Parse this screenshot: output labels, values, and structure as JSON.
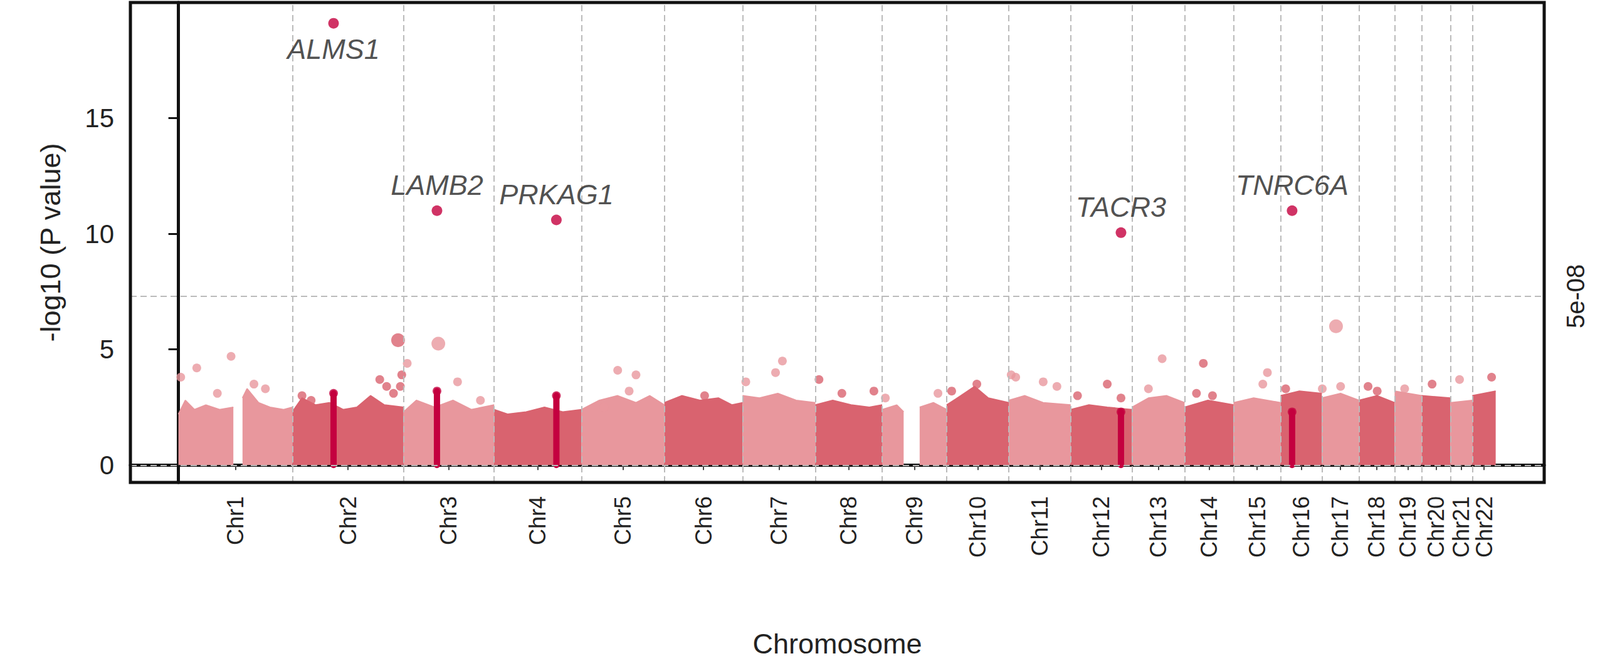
{
  "chart_data": {
    "type": "manhattan",
    "x_label": "Chromosome",
    "y_label": "-log10 (P value)",
    "xlim": [
      -105,
      2985
    ],
    "ylim": [
      -0.75,
      20
    ],
    "yticks": [
      0,
      5,
      10,
      15
    ],
    "xticks": [
      {
        "value": 124.5,
        "label": "Chr1"
      },
      {
        "value": 370.5,
        "label": "Chr2"
      },
      {
        "value": 591,
        "label": "Chr3"
      },
      {
        "value": 785.5,
        "label": "Chr4"
      },
      {
        "value": 971.5,
        "label": "Chr5"
      },
      {
        "value": 1147.5,
        "label": "Chr6"
      },
      {
        "value": 1312.5,
        "label": "Chr7"
      },
      {
        "value": 1465,
        "label": "Chr8"
      },
      {
        "value": 1608.5,
        "label": "Chr9"
      },
      {
        "value": 1747,
        "label": "Chr10"
      },
      {
        "value": 1882.5,
        "label": "Chr11"
      },
      {
        "value": 2017,
        "label": "Chr12"
      },
      {
        "value": 2141.5,
        "label": "Chr13"
      },
      {
        "value": 2252.5,
        "label": "Chr14"
      },
      {
        "value": 2357.5,
        "label": "Chr15"
      },
      {
        "value": 2454,
        "label": "Chr16"
      },
      {
        "value": 2539.5,
        "label": "Chr17"
      },
      {
        "value": 2619,
        "label": "Chr18"
      },
      {
        "value": 2687.5,
        "label": "Chr19"
      },
      {
        "value": 2748.5,
        "label": "Chr20"
      },
      {
        "value": 2804,
        "label": "Chr21"
      },
      {
        "value": 2853.5,
        "label": "Chr22"
      }
    ],
    "boundaries": [
      249,
      492,
      690,
      881,
      1062,
      1233,
      1392,
      1538,
      1679,
      1815,
      1950,
      2084,
      2199,
      2306,
      2409,
      2499,
      2580,
      2658,
      2717,
      2780,
      2828
    ],
    "hlines": [
      {
        "value": 0
      },
      {
        "value": 7.30103,
        "label": "5e-08"
      }
    ],
    "series": [
      {
        "color": "#e8979d",
        "envelope": [
          [
            0,
            2.2
          ],
          [
            15,
            2.8
          ],
          [
            35,
            2.4
          ],
          [
            60,
            2.6
          ],
          [
            90,
            2.4
          ],
          [
            120,
            2.5
          ],
          [
            124,
            null
          ],
          [
            140,
            2.9
          ],
          [
            150,
            3.3
          ],
          [
            175,
            2.7
          ],
          [
            200,
            2.5
          ],
          [
            230,
            2.4
          ],
          [
            249,
            2.5
          ]
        ],
        "points": [
          [
            5,
            3.8
          ],
          [
            40,
            4.2
          ],
          [
            115,
            4.7
          ],
          [
            85,
            3.1
          ],
          [
            165,
            3.5
          ],
          [
            190,
            3.3
          ]
        ]
      },
      {
        "color": "#d9636f",
        "envelope": [
          [
            249,
            2.3
          ],
          [
            270,
            2.9
          ],
          [
            300,
            2.6
          ],
          [
            330,
            2.7
          ],
          [
            360,
            2.4
          ],
          [
            390,
            2.5
          ],
          [
            420,
            3.0
          ],
          [
            450,
            2.6
          ],
          [
            492,
            2.5
          ]
        ],
        "points": [
          [
            270,
            3.0
          ],
          [
            290,
            2.8
          ],
          [
            440,
            3.7
          ],
          [
            455,
            3.4
          ],
          [
            470,
            3.1
          ],
          [
            480,
            5.4
          ],
          [
            485,
            3.4
          ],
          [
            488,
            3.9
          ]
        ]
      },
      {
        "color": "#e8979d",
        "envelope": [
          [
            492,
            2.3
          ],
          [
            520,
            2.8
          ],
          [
            560,
            2.5
          ],
          [
            600,
            2.8
          ],
          [
            640,
            2.4
          ],
          [
            690,
            2.6
          ]
        ],
        "points": [
          [
            500,
            4.4
          ],
          [
            568,
            5.25
          ],
          [
            610,
            3.6
          ],
          [
            660,
            2.8
          ]
        ]
      },
      {
        "color": "#d9636f",
        "envelope": [
          [
            690,
            2.4
          ],
          [
            720,
            2.2
          ],
          [
            760,
            2.3
          ],
          [
            800,
            2.5
          ],
          [
            840,
            2.3
          ],
          [
            881,
            2.4
          ]
        ],
        "points": []
      },
      {
        "color": "#e8979d",
        "envelope": [
          [
            881,
            2.4
          ],
          [
            920,
            2.8
          ],
          [
            960,
            3.0
          ],
          [
            1000,
            2.7
          ],
          [
            1030,
            3.0
          ],
          [
            1062,
            2.6
          ]
        ],
        "points": [
          [
            960,
            4.1
          ],
          [
            1000,
            3.9
          ],
          [
            985,
            3.2
          ],
          [
            930,
            2.5
          ]
        ]
      },
      {
        "color": "#d9636f",
        "envelope": [
          [
            1062,
            2.7
          ],
          [
            1100,
            3.0
          ],
          [
            1140,
            2.8
          ],
          [
            1180,
            2.9
          ],
          [
            1210,
            2.6
          ],
          [
            1233,
            2.7
          ]
        ],
        "points": [
          [
            1150,
            3.0
          ]
        ]
      },
      {
        "color": "#e8979d",
        "envelope": [
          [
            1233,
            3.0
          ],
          [
            1270,
            2.9
          ],
          [
            1310,
            3.1
          ],
          [
            1350,
            2.8
          ],
          [
            1392,
            2.7
          ]
        ],
        "points": [
          [
            1320,
            4.5
          ],
          [
            1305,
            4.0
          ],
          [
            1240,
            3.6
          ]
        ]
      },
      {
        "color": "#d9636f",
        "envelope": [
          [
            1392,
            2.6
          ],
          [
            1430,
            2.8
          ],
          [
            1470,
            2.6
          ],
          [
            1510,
            2.5
          ],
          [
            1538,
            2.6
          ]
        ],
        "points": [
          [
            1400,
            3.7
          ],
          [
            1450,
            3.1
          ],
          [
            1520,
            3.2
          ]
        ]
      },
      {
        "color": "#e8979d",
        "envelope": [
          [
            1538,
            2.4
          ],
          [
            1570,
            2.6
          ],
          [
            1585,
            2.3
          ],
          [
            1590,
            null
          ],
          [
            1620,
            2.5
          ],
          [
            1650,
            2.7
          ],
          [
            1679,
            2.4
          ]
        ],
        "points": [
          [
            1545,
            2.9
          ],
          [
            1660,
            3.1
          ]
        ]
      },
      {
        "color": "#d9636f",
        "envelope": [
          [
            1679,
            2.6
          ],
          [
            1710,
            3.0
          ],
          [
            1740,
            3.4
          ],
          [
            1770,
            2.9
          ],
          [
            1815,
            2.7
          ]
        ],
        "points": [
          [
            1690,
            3.2
          ],
          [
            1745,
            3.5
          ]
        ]
      },
      {
        "color": "#e8979d",
        "envelope": [
          [
            1815,
            2.8
          ],
          [
            1850,
            3.0
          ],
          [
            1890,
            2.7
          ],
          [
            1950,
            2.6
          ]
        ],
        "points": [
          [
            1820,
            3.9
          ],
          [
            1830,
            3.8
          ],
          [
            1890,
            3.6
          ],
          [
            1920,
            3.4
          ]
        ]
      },
      {
        "color": "#d9636f",
        "envelope": [
          [
            1950,
            2.4
          ],
          [
            1990,
            2.6
          ],
          [
            2030,
            2.5
          ],
          [
            2084,
            2.4
          ]
        ],
        "points": [
          [
            2030,
            3.5
          ],
          [
            1965,
            3.0
          ],
          [
            2060,
            2.9
          ]
        ]
      },
      {
        "color": "#e8979d",
        "envelope": [
          [
            2084,
            2.5
          ],
          [
            2120,
            2.9
          ],
          [
            2160,
            3.0
          ],
          [
            2199,
            2.7
          ]
        ],
        "points": [
          [
            2150,
            4.6
          ],
          [
            2120,
            3.3
          ]
        ]
      },
      {
        "color": "#d9636f",
        "envelope": [
          [
            2199,
            2.5
          ],
          [
            2250,
            2.8
          ],
          [
            2306,
            2.6
          ]
        ],
        "points": [
          [
            2240,
            4.4
          ],
          [
            2225,
            3.1
          ],
          [
            2260,
            3.0
          ]
        ]
      },
      {
        "color": "#e8979d",
        "envelope": [
          [
            2306,
            2.7
          ],
          [
            2350,
            2.9
          ],
          [
            2409,
            2.7
          ]
        ],
        "points": [
          [
            2380,
            4.0
          ],
          [
            2370,
            3.5
          ]
        ]
      },
      {
        "color": "#d9636f",
        "envelope": [
          [
            2409,
            3.0
          ],
          [
            2450,
            3.2
          ],
          [
            2499,
            3.1
          ]
        ],
        "points": [
          [
            2420,
            3.3
          ]
        ]
      },
      {
        "color": "#e8979d",
        "envelope": [
          [
            2499,
            2.9
          ],
          [
            2540,
            3.1
          ],
          [
            2580,
            2.8
          ]
        ],
        "points": [
          [
            2530,
            6.0
          ],
          [
            2540,
            3.4
          ],
          [
            2500,
            3.3
          ]
        ]
      },
      {
        "color": "#d9636f",
        "envelope": [
          [
            2580,
            2.8
          ],
          [
            2620,
            3.0
          ],
          [
            2658,
            2.7
          ]
        ],
        "points": [
          [
            2600,
            3.4
          ],
          [
            2620,
            3.2
          ]
        ]
      },
      {
        "color": "#e8979d",
        "envelope": [
          [
            2658,
            3.2
          ],
          [
            2717,
            3.0
          ]
        ],
        "points": [
          [
            2680,
            3.3
          ]
        ]
      },
      {
        "color": "#d9636f",
        "envelope": [
          [
            2717,
            3.0
          ],
          [
            2780,
            2.9
          ]
        ],
        "points": [
          [
            2740,
            3.5
          ]
        ]
      },
      {
        "color": "#e8979d",
        "envelope": [
          [
            2780,
            2.7
          ],
          [
            2828,
            2.8
          ]
        ],
        "points": [
          [
            2800,
            3.7
          ]
        ]
      },
      {
        "color": "#d9636f",
        "envelope": [
          [
            2828,
            3.0
          ],
          [
            2879,
            3.2
          ]
        ],
        "points": [
          [
            2870,
            3.8
          ]
        ]
      }
    ],
    "hits": {
      "color": "#c4003f",
      "points": [
        {
          "label": "ALMS1",
          "x": 339,
          "value": 19.1,
          "column_top": 3.1
        },
        {
          "label": "LAMB2",
          "x": 565,
          "value": 11.0,
          "column_top": 3.2
        },
        {
          "label": "PRKAG1",
          "x": 826,
          "value": 10.6,
          "column_top": 3.0
        },
        {
          "label": "TACR3",
          "x": 2060,
          "value": 10.05,
          "column_top": 2.3
        },
        {
          "label": "TNRC6A",
          "x": 2434,
          "value": 11.0,
          "column_top": 2.3
        }
      ]
    }
  }
}
